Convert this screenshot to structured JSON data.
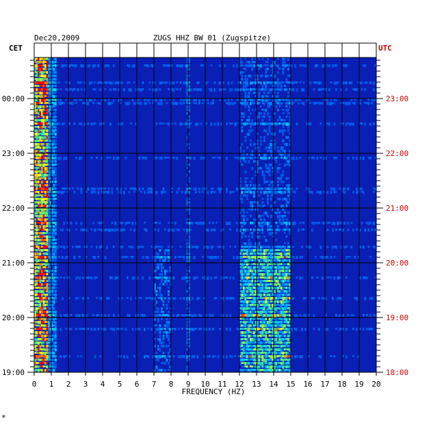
{
  "chart_data": {
    "type": "heatmap",
    "date": "Dec20,2009",
    "title": "ZUGS HHZ BW 01 (Zugspitze)",
    "left_axis_label": "CET",
    "right_axis_label": "UTC",
    "xlabel": "FREQUENCY (HZ)",
    "xlim": [
      0,
      20
    ],
    "x_ticks": [
      "0",
      "1",
      "2",
      "3",
      "4",
      "5",
      "6",
      "7",
      "8",
      "9",
      "10",
      "11",
      "12",
      "13",
      "14",
      "15",
      "16",
      "17",
      "18",
      "19",
      "20"
    ],
    "cet_ticks": [
      "00:00",
      "23:00",
      "22:00",
      "21:00",
      "20:00",
      "19:00"
    ],
    "utc_ticks": [
      "23:00",
      "22:00",
      "21:00",
      "20:00",
      "19:00",
      "18:00"
    ],
    "colors": {
      "background": "#0a1fb4",
      "low": "#0000c8",
      "mid": "#00c8ff",
      "high": "#ffff00",
      "peak": "#ff0000",
      "utc_text": "#cc0000"
    },
    "features": [
      {
        "description": "strong energy",
        "freq_range_hz": [
          0.1,
          0.7
        ],
        "intensity": "high"
      },
      {
        "description": "band of activity",
        "freq_range_hz": [
          12.0,
          15.0
        ],
        "intensity": "medium-high",
        "time": "late (lower part)"
      },
      {
        "description": "narrow line",
        "freq_range_hz": [
          8.9,
          9.1
        ],
        "intensity": "low-medium"
      }
    ]
  },
  "corner_mark": "*"
}
